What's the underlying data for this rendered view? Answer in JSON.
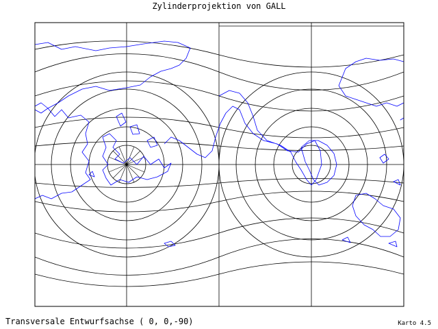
{
  "title": "Zylinderprojektion von GALL",
  "caption": "Transversale Entwurfsachse ( 0, 0,-90)",
  "version": "Karto 4.5",
  "colors": {
    "background": "#ffffff",
    "graticule": "#000000",
    "coastline": "#0000ff",
    "frame": "#000000"
  }
}
